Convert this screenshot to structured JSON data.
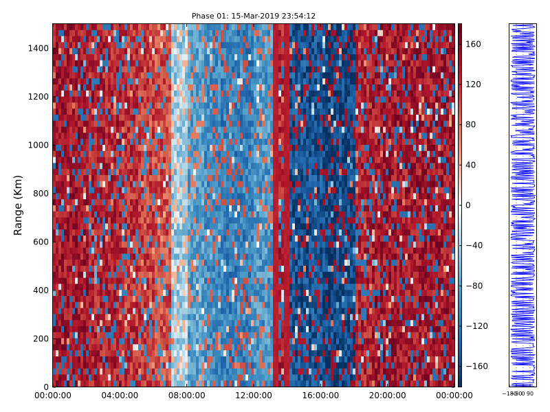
{
  "chart_data": [
    {
      "type": "heatmap",
      "title": "Phase 01: 15-Mar-2019 23:54:12",
      "xlabel": "",
      "ylabel": "Range (Km)",
      "xlim": [
        "00:00:00",
        "24:00:00"
      ],
      "ylim": [
        0,
        1500
      ],
      "x_ticks": [
        "00:00:00",
        "04:00:00",
        "08:00:00",
        "12:00:00",
        "16:00:00",
        "20:00:00",
        "00:00:00"
      ],
      "y_ticks": [
        "0",
        "200",
        "400",
        "600",
        "800",
        "1000",
        "1200",
        "1400"
      ],
      "colormap": "RdBu_r",
      "colorbar": {
        "range": [
          -180,
          180
        ],
        "ticks": [
          "160",
          "120",
          "80",
          "40",
          "0",
          "−40",
          "−80",
          "−120",
          "−160"
        ]
      },
      "dominant_value_by_hour": [
        140,
        140,
        130,
        130,
        120,
        110,
        100,
        -40,
        -80,
        -100,
        -110,
        -110,
        -90,
        130,
        -150,
        -150,
        -160,
        -160,
        130,
        140,
        140,
        140,
        140,
        140
      ],
      "grid": false
    },
    {
      "type": "line",
      "title": "",
      "x_ticks": [
        "−180",
        "−90",
        "0",
        "90"
      ],
      "color": "#0000ff",
      "grid": true
    }
  ]
}
